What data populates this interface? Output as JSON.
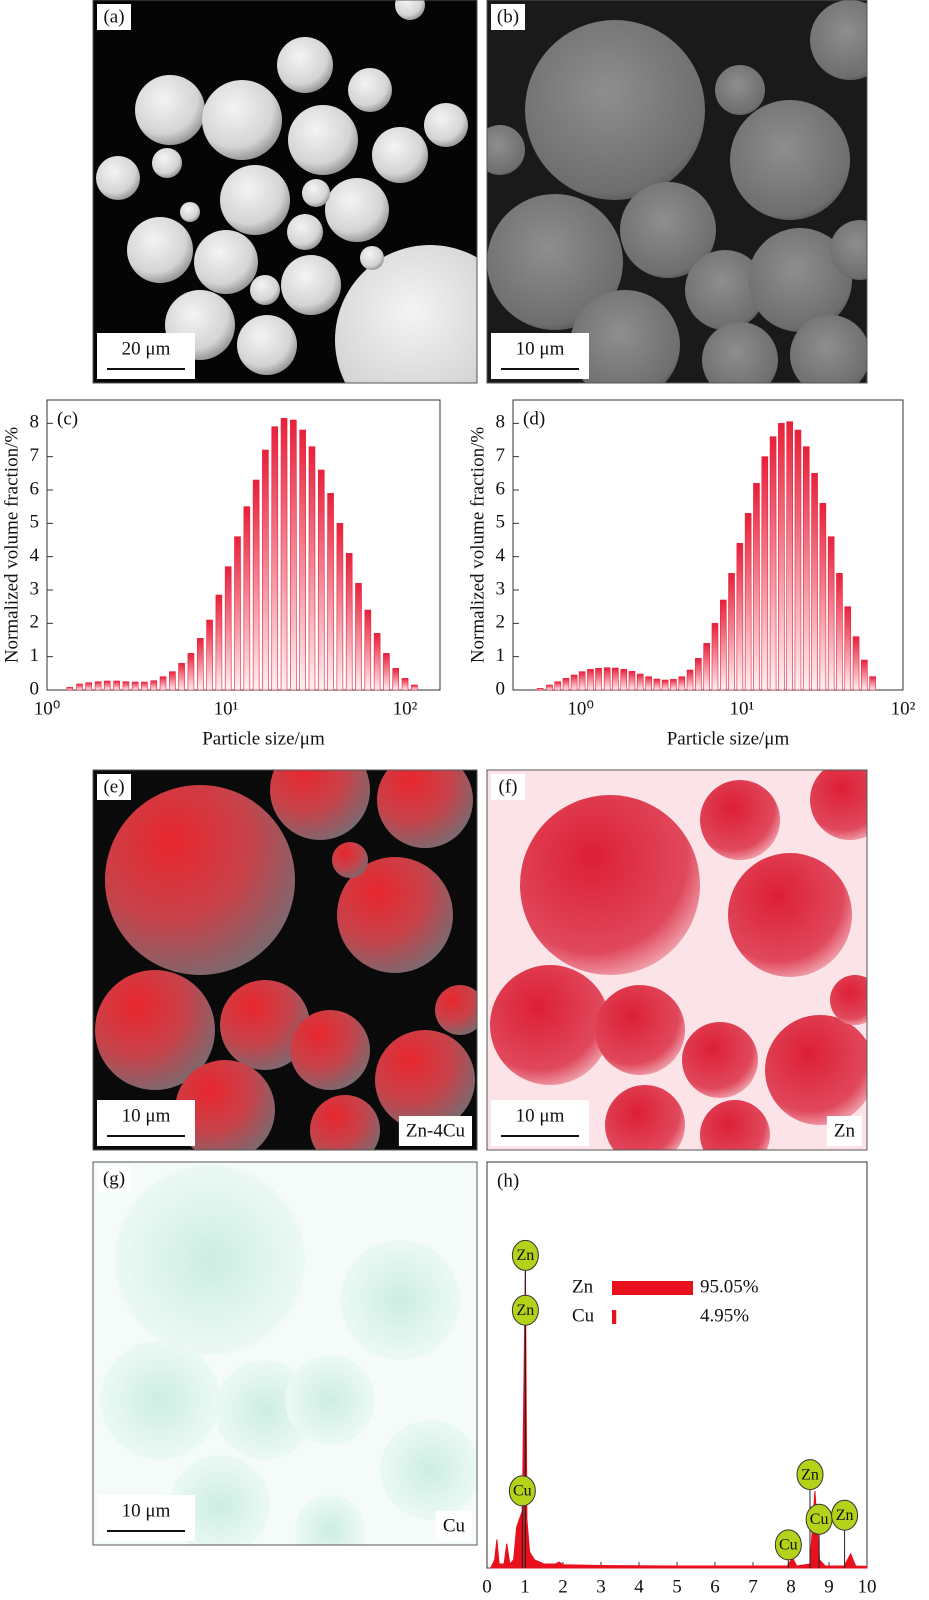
{
  "images": [
    {
      "label": "(a)",
      "scale_bar": "20 μm"
    },
    {
      "label": "(b)",
      "scale_bar": "10 μm"
    },
    {
      "label": "(e)",
      "scale_bar": "10 μm",
      "element": "Zn-4Cu"
    },
    {
      "label": "(f)",
      "scale_bar": "10 μm",
      "element": "Zn"
    },
    {
      "label": "(g)",
      "scale_bar": "10 μm",
      "element": "Cu"
    }
  ],
  "chart_data": [
    {
      "type": "bar",
      "panel_label": "(c)",
      "x_label": "Particle size/μm",
      "y_label": "Normalized volume fraction/%",
      "color": "#e8203a",
      "xscale": "log",
      "x": [
        1.34,
        1.52,
        1.71,
        1.93,
        2.17,
        2.45,
        2.76,
        3.11,
        3.5,
        3.95,
        4.45,
        5.02,
        5.65,
        6.37,
        7.19,
        8.1,
        9.13,
        10.29,
        11.6,
        13.08,
        14.74,
        16.61,
        18.73,
        21.11,
        23.8,
        26.82,
        30.24,
        34.08,
        38.41,
        43.3,
        48.81,
        55.02,
        62.02,
        69.91,
        78.8,
        88.83,
        100.1,
        112.9
      ],
      "values": [
        0.08,
        0.18,
        0.22,
        0.25,
        0.27,
        0.27,
        0.25,
        0.24,
        0.24,
        0.28,
        0.4,
        0.55,
        0.8,
        1.1,
        1.55,
        2.1,
        2.85,
        3.7,
        4.6,
        5.5,
        6.3,
        7.2,
        7.9,
        8.15,
        8.1,
        7.8,
        7.3,
        6.6,
        5.9,
        5.0,
        4.1,
        3.2,
        2.4,
        1.7,
        1.1,
        0.65,
        0.35,
        0.15
      ],
      "xlim": [
        1,
        157
      ],
      "xticks": [
        {
          "value": 1,
          "label": "10⁰"
        },
        {
          "value": 10,
          "label": "10¹"
        },
        {
          "value": 100,
          "label": "10²"
        }
      ],
      "ylim": [
        0,
        8.7
      ],
      "yticks": [
        0,
        1,
        2,
        3,
        4,
        5,
        6,
        7,
        8
      ]
    },
    {
      "type": "bar",
      "panel_label": "(d)",
      "x_label": "Particle size/μm",
      "y_label": "Normalized volume fraction/%",
      "color": "#e8203a",
      "xscale": "log",
      "x": [
        0.56,
        0.64,
        0.72,
        0.81,
        0.91,
        1.02,
        1.15,
        1.29,
        1.46,
        1.64,
        1.85,
        2.08,
        2.34,
        2.64,
        2.97,
        3.34,
        3.76,
        4.24,
        4.77,
        5.37,
        6.05,
        6.81,
        7.67,
        8.63,
        9.72,
        10.94,
        12.32,
        13.88,
        15.62,
        17.59,
        19.81,
        22.29,
        25.1,
        28.26,
        31.82,
        35.82,
        40.33,
        45.41,
        51.13,
        57.56,
        64.81
      ],
      "values": [
        0.05,
        0.15,
        0.25,
        0.35,
        0.45,
        0.55,
        0.62,
        0.65,
        0.67,
        0.66,
        0.62,
        0.56,
        0.48,
        0.4,
        0.33,
        0.3,
        0.32,
        0.4,
        0.6,
        0.95,
        1.4,
        2.0,
        2.7,
        3.5,
        4.4,
        5.3,
        6.2,
        7.0,
        7.6,
        8.0,
        8.05,
        7.8,
        7.3,
        6.5,
        5.6,
        4.6,
        3.5,
        2.5,
        1.6,
        0.9,
        0.4
      ],
      "xlim": [
        0.38,
        100
      ],
      "xticks": [
        {
          "value": 1,
          "label": "10⁰"
        },
        {
          "value": 10,
          "label": "10¹"
        },
        {
          "value": 100,
          "label": "10²"
        }
      ],
      "ylim": [
        0,
        8.7
      ],
      "yticks": [
        0,
        1,
        2,
        3,
        4,
        5,
        6,
        7,
        8
      ]
    },
    {
      "type": "area",
      "panel_label": "(h)",
      "color": "#e8101c",
      "x": [
        0.1,
        0.2,
        0.26,
        0.32,
        0.45,
        0.52,
        0.6,
        0.7,
        0.78,
        0.85,
        0.93,
        1.01,
        1.05,
        1.12,
        1.25,
        1.5,
        1.8,
        1.9,
        2.0,
        3,
        5,
        7,
        7.9,
        8.04,
        8.15,
        8.5,
        8.63,
        8.75,
        8.9,
        9.4,
        9.57,
        9.7,
        10
      ],
      "values": [
        0,
        2,
        7,
        1,
        1,
        6,
        1,
        2,
        10,
        12,
        14,
        75,
        12,
        4,
        2,
        1,
        1,
        1.5,
        0.8,
        0.6,
        0.5,
        0.5,
        0.5,
        2.5,
        0.5,
        1,
        19,
        2,
        0.5,
        0.5,
        3.5,
        0.5,
        0.4
      ],
      "xlim": [
        0,
        10
      ],
      "xticks": [
        0,
        1,
        2,
        3,
        4,
        5,
        6,
        7,
        8,
        9,
        10
      ],
      "ylim": [
        0,
        100
      ],
      "annotations": [
        {
          "label": "Zn",
          "x": 1.01,
          "y": 77
        },
        {
          "label": "Zn",
          "x": 1.01,
          "y": 63.5
        },
        {
          "label": "Cu",
          "x": 0.93,
          "y": 19
        },
        {
          "label": "Cu",
          "x": 7.93,
          "y": 5.7
        },
        {
          "label": "Zn",
          "x": 8.5,
          "y": 23
        },
        {
          "label": "Cu",
          "x": 8.74,
          "y": 12
        },
        {
          "label": "Zn",
          "x": 9.41,
          "y": 13
        }
      ],
      "composition": {
        "categories": [
          "Zn",
          "Cu"
        ],
        "values": [
          95.05,
          4.95
        ],
        "value_labels": [
          "95.05%",
          "4.95%"
        ]
      }
    }
  ]
}
